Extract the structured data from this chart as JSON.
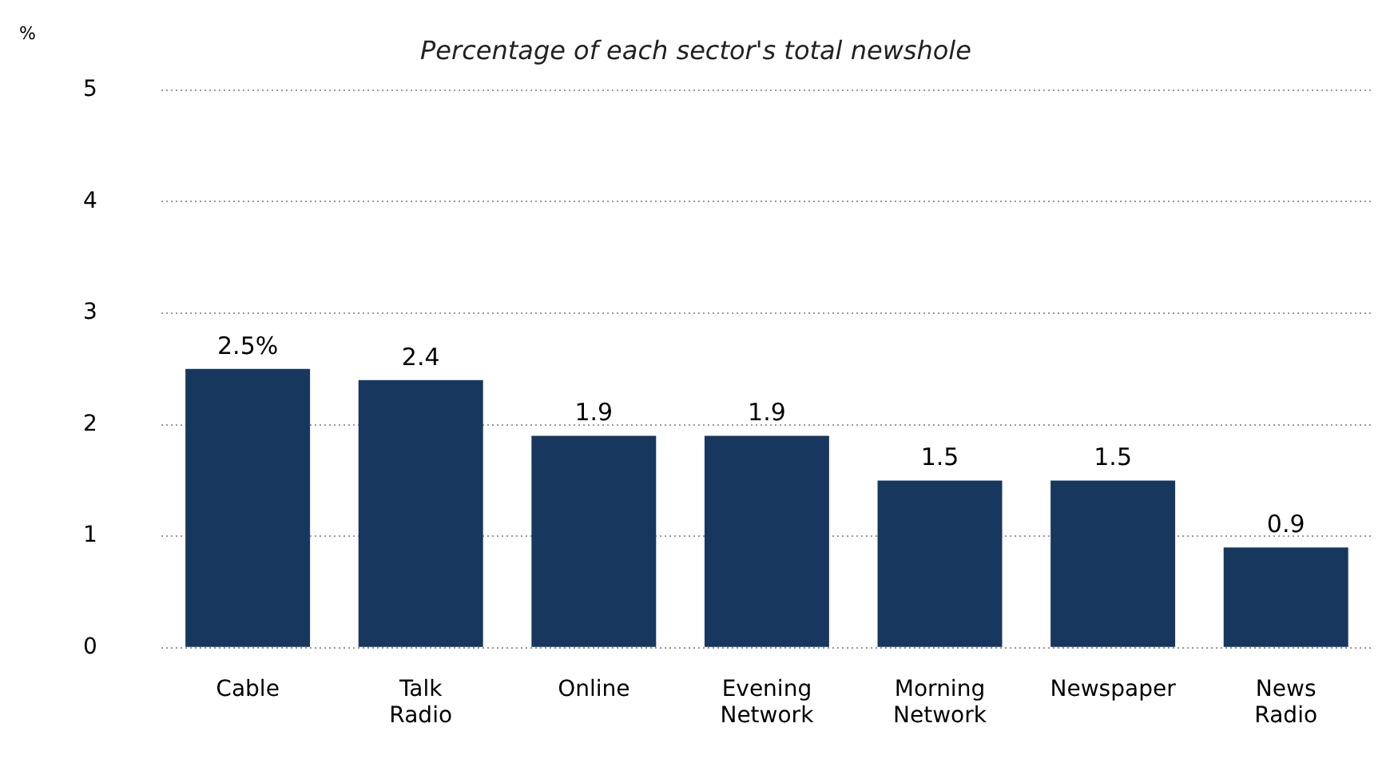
{
  "chart_data": {
    "type": "bar",
    "title": "Percentage of each sector's total newshole",
    "ylabel": "%",
    "categories": [
      "Cable",
      "Talk Radio",
      "Online",
      "Evening Network",
      "Morning Network",
      "Newspaper",
      "News Radio"
    ],
    "values": [
      2.5,
      2.4,
      1.9,
      1.9,
      1.5,
      1.5,
      0.9
    ],
    "value_labels": [
      "2.5%",
      "2.4",
      "1.9",
      "1.9",
      "1.5",
      "1.5",
      "0.9"
    ],
    "color": "#17375e",
    "ylim": [
      0,
      5
    ],
    "yticks": [
      0,
      1,
      2,
      3,
      4,
      5
    ],
    "grid": "y"
  }
}
